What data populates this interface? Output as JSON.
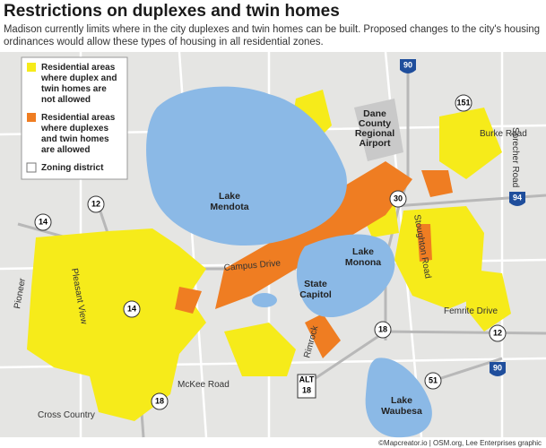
{
  "header": {
    "title": "Restrictions on duplexes and twin homes",
    "subtitle_lines": [
      "Madison currently limits where in the city duplexes and twin homes can be built. Proposed changes to the city's housing",
      "ordinances would allow these types of housing in all residential zones."
    ]
  },
  "legend": {
    "items": [
      {
        "label_lines": [
          "Residential areas",
          "where duplex and",
          "twin homes are",
          "not allowed"
        ]
      },
      {
        "label_lines": [
          "Residential areas",
          "where duplexes",
          "and twin homes",
          "are allowed"
        ]
      },
      {
        "label_lines": [
          "Zoning district"
        ]
      }
    ]
  },
  "places": [
    {
      "lines": [
        "Dane",
        "County",
        "Regional",
        "Airport"
      ]
    },
    {
      "lines": [
        "Lake",
        "Mendota"
      ]
    },
    {
      "lines": [
        "Lake",
        "Monona"
      ]
    },
    {
      "lines": [
        "State",
        "Capitol"
      ]
    },
    {
      "lines": [
        "Lake",
        "Waubesa"
      ]
    }
  ],
  "roads": [
    "Burke Road",
    "Sprecher Road",
    "Stoughton Road",
    "Campus Drive",
    "Pleasant View",
    "Pioneer",
    "Rimrock",
    "Femrite Drive",
    "McKee Road",
    "Cross Country"
  ],
  "shields": [
    "90",
    "151",
    "30",
    "94",
    "14",
    "12",
    "14",
    "18",
    "12",
    "90",
    "51",
    "ALT",
    "18",
    "18"
  ],
  "credit": "©Mapcreator.io | OSM.org, Lee Enterprises graphic"
}
